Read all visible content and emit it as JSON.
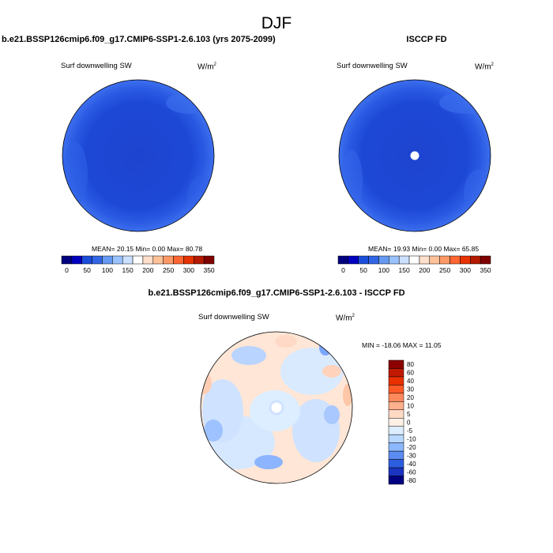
{
  "figure": {
    "title": "DJF"
  },
  "panels": [
    {
      "id": "model",
      "title": "b.e21.BSSP126cmip6.f09_g17.CMIP6-SSP1-2.6.103 (yrs 2075-2099)",
      "variable": "Surf downwelling SW",
      "units_base": "W/m",
      "units_sup": "2",
      "stats": "MEAN=  20.15  Min=   0.00  Max=  80.78",
      "colorbar_ticks": [
        "0",
        "50",
        "100",
        "150",
        "200",
        "250",
        "300",
        "350"
      ]
    },
    {
      "id": "obs",
      "title": "ISCCP FD",
      "variable": "Surf downwelling SW",
      "units_base": "W/m",
      "units_sup": "2",
      "stats": "MEAN=  19.93  Min=   0.00  Max=  65.85",
      "colorbar_ticks": [
        "0",
        "50",
        "100",
        "150",
        "200",
        "250",
        "300",
        "350"
      ]
    },
    {
      "id": "diff",
      "title": "b.e21.BSSP126cmip6.f09_g17.CMIP6-SSP1-2.6.103 - ISCCP FD",
      "variable": "Surf downwelling SW",
      "units_base": "W/m",
      "units_sup": "2",
      "stats": "MIN = -18.06 MAX =  11.05",
      "colorbar_ticks": [
        "80",
        "60",
        "40",
        "30",
        "20",
        "10",
        "5",
        "0",
        "-5",
        "-10",
        "-20",
        "-30",
        "-40",
        "-60",
        "-80"
      ]
    }
  ],
  "colors": {
    "abs_scale": [
      "#00007f",
      "#0000bf",
      "#1a4dd9",
      "#3366e6",
      "#6699f2",
      "#99c2ff",
      "#cce0ff",
      "#ffffff",
      "#ffe0cc",
      "#ffc299",
      "#ff9966",
      "#ff6633",
      "#e63300",
      "#b31a00",
      "#7f0000"
    ],
    "diff_scale": [
      "#8c0000",
      "#c01a00",
      "#e83000",
      "#ff5a28",
      "#ff8a5c",
      "#ffb08c",
      "#ffd9c4",
      "#fff0e6",
      "#dceeff",
      "#b8d8ff",
      "#8cb8ff",
      "#5b8cf2",
      "#2e5ee0",
      "#1a33c0",
      "#000080"
    ],
    "dark_field": "#1a47d4",
    "rim_field": "#2f5fe5"
  }
}
